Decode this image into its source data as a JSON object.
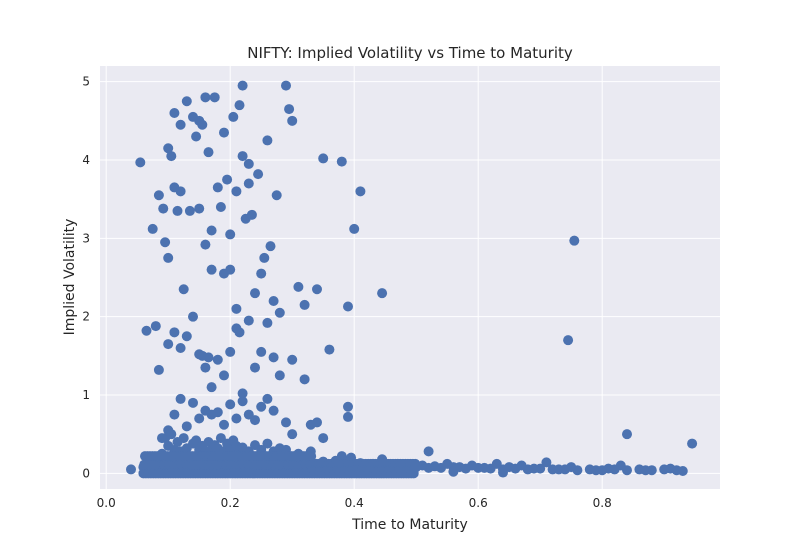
{
  "chart_data": {
    "type": "scatter",
    "title": "NIFTY: Implied Volatility vs Time to Maturity",
    "xlabel": "Time to Maturity",
    "ylabel": "Implied Volatility",
    "xlim": [
      -0.01,
      0.99
    ],
    "ylim": [
      -0.2,
      5.2
    ],
    "xticks": [
      0.0,
      0.2,
      0.4,
      0.6,
      0.8
    ],
    "xtick_labels": [
      "0.0",
      "0.2",
      "0.4",
      "0.6",
      "0.8"
    ],
    "yticks": [
      0,
      1,
      2,
      3,
      4,
      5
    ],
    "ytick_labels": [
      "0",
      "1",
      "2",
      "3",
      "4",
      "5"
    ],
    "grid": true,
    "background": "#eaeaf2",
    "marker_color": "#4c72b0",
    "series": [
      {
        "x": [
          0.055,
          0.075,
          0.085,
          0.092,
          0.095,
          0.1,
          0.1,
          0.105,
          0.11,
          0.11,
          0.115,
          0.12,
          0.12,
          0.125,
          0.13,
          0.135,
          0.14,
          0.145,
          0.15,
          0.15,
          0.155,
          0.16,
          0.16,
          0.165,
          0.17,
          0.17,
          0.175,
          0.18,
          0.185,
          0.19,
          0.19,
          0.195,
          0.2,
          0.2,
          0.205,
          0.21,
          0.21,
          0.215,
          0.22,
          0.22,
          0.225,
          0.23,
          0.23,
          0.235,
          0.24,
          0.245,
          0.25,
          0.255,
          0.26,
          0.265,
          0.27,
          0.275,
          0.28,
          0.29,
          0.295,
          0.3,
          0.31,
          0.32,
          0.34,
          0.35,
          0.38,
          0.39,
          0.4,
          0.41,
          0.085,
          0.095,
          0.1,
          0.105,
          0.11,
          0.12,
          0.13,
          0.14,
          0.15,
          0.155,
          0.16,
          0.165,
          0.17,
          0.18,
          0.19,
          0.2,
          0.21,
          0.215,
          0.22,
          0.23,
          0.24,
          0.25,
          0.26,
          0.27,
          0.28,
          0.3,
          0.32,
          0.34,
          0.36,
          0.39,
          0.445,
          0.065,
          0.08,
          0.09,
          0.1,
          0.11,
          0.12,
          0.13,
          0.14,
          0.15,
          0.16,
          0.17,
          0.18,
          0.19,
          0.2,
          0.21,
          0.22,
          0.23,
          0.24,
          0.25,
          0.26,
          0.27,
          0.29,
          0.3,
          0.33,
          0.35,
          0.39,
          0.745,
          0.755,
          0.09,
          0.1,
          0.11,
          0.115,
          0.12,
          0.125,
          0.13,
          0.14,
          0.145,
          0.15,
          0.155,
          0.16,
          0.165,
          0.17,
          0.175,
          0.18,
          0.185,
          0.19,
          0.195,
          0.2,
          0.205,
          0.21,
          0.215,
          0.22,
          0.23,
          0.24,
          0.25,
          0.26,
          0.27,
          0.28,
          0.29,
          0.31,
          0.33,
          0.38,
          0.395,
          0.445,
          0.52,
          0.84,
          0.945,
          0.04,
          0.06,
          0.08,
          0.1,
          0.12,
          0.14,
          0.16,
          0.18,
          0.2,
          0.22,
          0.24,
          0.26,
          0.28,
          0.3,
          0.32,
          0.34,
          0.36,
          0.38,
          0.4,
          0.42,
          0.44,
          0.46,
          0.48,
          0.5,
          0.52,
          0.54,
          0.56,
          0.58,
          0.6,
          0.62,
          0.64,
          0.66,
          0.68,
          0.7,
          0.72,
          0.74,
          0.76,
          0.78,
          0.8,
          0.82,
          0.84,
          0.86,
          0.88,
          0.9,
          0.92,
          0.07,
          0.09,
          0.11,
          0.13,
          0.15,
          0.17,
          0.19,
          0.21,
          0.23,
          0.25,
          0.27,
          0.29,
          0.31,
          0.33,
          0.35,
          0.37,
          0.39,
          0.41,
          0.43,
          0.45,
          0.47,
          0.49,
          0.51,
          0.53,
          0.55,
          0.57,
          0.59,
          0.61,
          0.63,
          0.65,
          0.67,
          0.69,
          0.71,
          0.73,
          0.75,
          0.79,
          0.81,
          0.83,
          0.87,
          0.91,
          0.93,
          0.12,
          0.16,
          0.2,
          0.24,
          0.28,
          0.32,
          0.36,
          0.4,
          0.44,
          0.48,
          0.56,
          0.64
        ],
        "y": [
          3.97,
          3.12,
          3.55,
          3.38,
          2.95,
          2.75,
          4.15,
          4.05,
          4.6,
          3.65,
          3.35,
          3.6,
          4.45,
          2.35,
          4.75,
          3.35,
          4.55,
          4.3,
          3.38,
          4.5,
          4.45,
          2.92,
          4.8,
          4.1,
          2.6,
          3.1,
          4.8,
          3.65,
          3.4,
          4.35,
          2.55,
          3.75,
          3.05,
          2.6,
          4.55,
          3.6,
          2.1,
          4.7,
          4.95,
          4.05,
          3.25,
          3.95,
          3.7,
          3.3,
          2.3,
          3.82,
          2.55,
          2.75,
          4.25,
          2.9,
          2.2,
          3.55,
          2.05,
          4.95,
          4.65,
          4.5,
          2.38,
          2.15,
          2.35,
          4.02,
          3.98,
          2.13,
          3.12,
          3.6,
          1.32,
          0.45,
          1.65,
          0.5,
          1.8,
          1.6,
          1.75,
          2.0,
          1.52,
          1.5,
          1.35,
          1.48,
          0.75,
          1.45,
          1.25,
          1.55,
          1.85,
          1.8,
          1.02,
          1.95,
          1.35,
          1.55,
          1.92,
          1.48,
          1.25,
          1.45,
          1.2,
          0.65,
          1.58,
          0.85,
          2.3,
          1.82,
          1.88,
          0.45,
          0.55,
          0.75,
          0.95,
          0.6,
          0.9,
          0.7,
          0.8,
          1.1,
          0.78,
          0.62,
          0.88,
          0.7,
          0.92,
          0.75,
          0.68,
          0.85,
          0.95,
          0.8,
          0.65,
          0.5,
          0.62,
          0.45,
          0.72,
          1.7,
          2.97,
          0.25,
          0.35,
          0.3,
          0.4,
          0.28,
          0.45,
          0.32,
          0.38,
          0.42,
          0.3,
          0.35,
          0.28,
          0.4,
          0.3,
          0.36,
          0.32,
          0.45,
          0.28,
          0.38,
          0.3,
          0.42,
          0.35,
          0.3,
          0.33,
          0.28,
          0.36,
          0.3,
          0.38,
          0.28,
          0.32,
          0.3,
          0.25,
          0.28,
          0.22,
          0.2,
          0.18,
          0.28,
          0.5,
          0.38,
          0.05,
          0.08,
          0.1,
          0.12,
          0.15,
          0.14,
          0.16,
          0.15,
          0.14,
          0.16,
          0.15,
          0.14,
          0.13,
          0.12,
          0.12,
          0.1,
          0.11,
          0.1,
          0.1,
          0.09,
          0.1,
          0.08,
          0.09,
          0.08,
          0.07,
          0.07,
          0.08,
          0.06,
          0.07,
          0.06,
          0.05,
          0.06,
          0.05,
          0.06,
          0.05,
          0.05,
          0.04,
          0.05,
          0.04,
          0.05,
          0.04,
          0.05,
          0.04,
          0.05,
          0.04,
          0.18,
          0.22,
          0.2,
          0.24,
          0.22,
          0.25,
          0.2,
          0.23,
          0.21,
          0.24,
          0.2,
          0.18,
          0.2,
          0.17,
          0.15,
          0.16,
          0.14,
          0.13,
          0.12,
          0.11,
          0.12,
          0.1,
          0.1,
          0.09,
          0.12,
          0.08,
          0.1,
          0.07,
          0.12,
          0.08,
          0.1,
          0.06,
          0.14,
          0.05,
          0.08,
          0.04,
          0.06,
          0.1,
          0.04,
          0.06,
          0.03,
          0.02,
          0.03,
          0.02,
          0.03,
          0.02,
          0.02,
          0.02,
          0.02,
          0.02,
          0.02,
          0.02,
          0.01
        ]
      }
    ]
  }
}
